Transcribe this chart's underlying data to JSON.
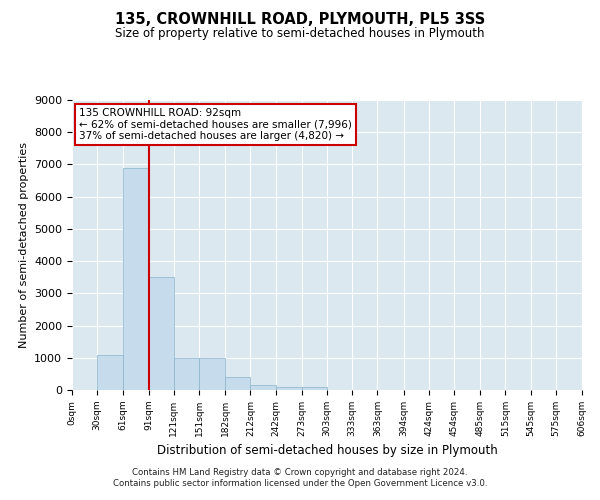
{
  "title": "135, CROWNHILL ROAD, PLYMOUTH, PL5 3SS",
  "subtitle": "Size of property relative to semi-detached houses in Plymouth",
  "xlabel": "Distribution of semi-detached houses by size in Plymouth",
  "ylabel": "Number of semi-detached properties",
  "annotation_title": "135 CROWNHILL ROAD: 92sqm",
  "annotation_line1": "← 62% of semi-detached houses are smaller (7,996)",
  "annotation_line2": "37% of semi-detached houses are larger (4,820) →",
  "footer_line1": "Contains HM Land Registry data © Crown copyright and database right 2024.",
  "footer_line2": "Contains public sector information licensed under the Open Government Licence v3.0.",
  "property_size": 92,
  "bar_edges": [
    0,
    30,
    61,
    91,
    121,
    151,
    182,
    212,
    242,
    273,
    303,
    333,
    363,
    394,
    424,
    454,
    485,
    515,
    545,
    575,
    606
  ],
  "bar_heights": [
    0,
    1100,
    6900,
    3500,
    1000,
    1000,
    400,
    150,
    100,
    100,
    0,
    0,
    0,
    0,
    0,
    0,
    0,
    0,
    0,
    0
  ],
  "bar_color": "#c6dcec",
  "bar_edgecolor": "#8ab4cc",
  "vline_color": "#cc0000",
  "vline_x": 92,
  "annotation_box_edgecolor": "#cc0000",
  "annotation_bg": "#ffffff",
  "plot_bg_color": "#dce8f0",
  "ylim": [
    0,
    9000
  ],
  "yticks": [
    0,
    1000,
    2000,
    3000,
    4000,
    5000,
    6000,
    7000,
    8000,
    9000
  ],
  "tick_labels": [
    "0sqm",
    "30sqm",
    "61sqm",
    "91sqm",
    "121sqm",
    "151sqm",
    "182sqm",
    "212sqm",
    "242sqm",
    "273sqm",
    "303sqm",
    "333sqm",
    "363sqm",
    "394sqm",
    "424sqm",
    "454sqm",
    "485sqm",
    "515sqm",
    "545sqm",
    "575sqm",
    "606sqm"
  ]
}
